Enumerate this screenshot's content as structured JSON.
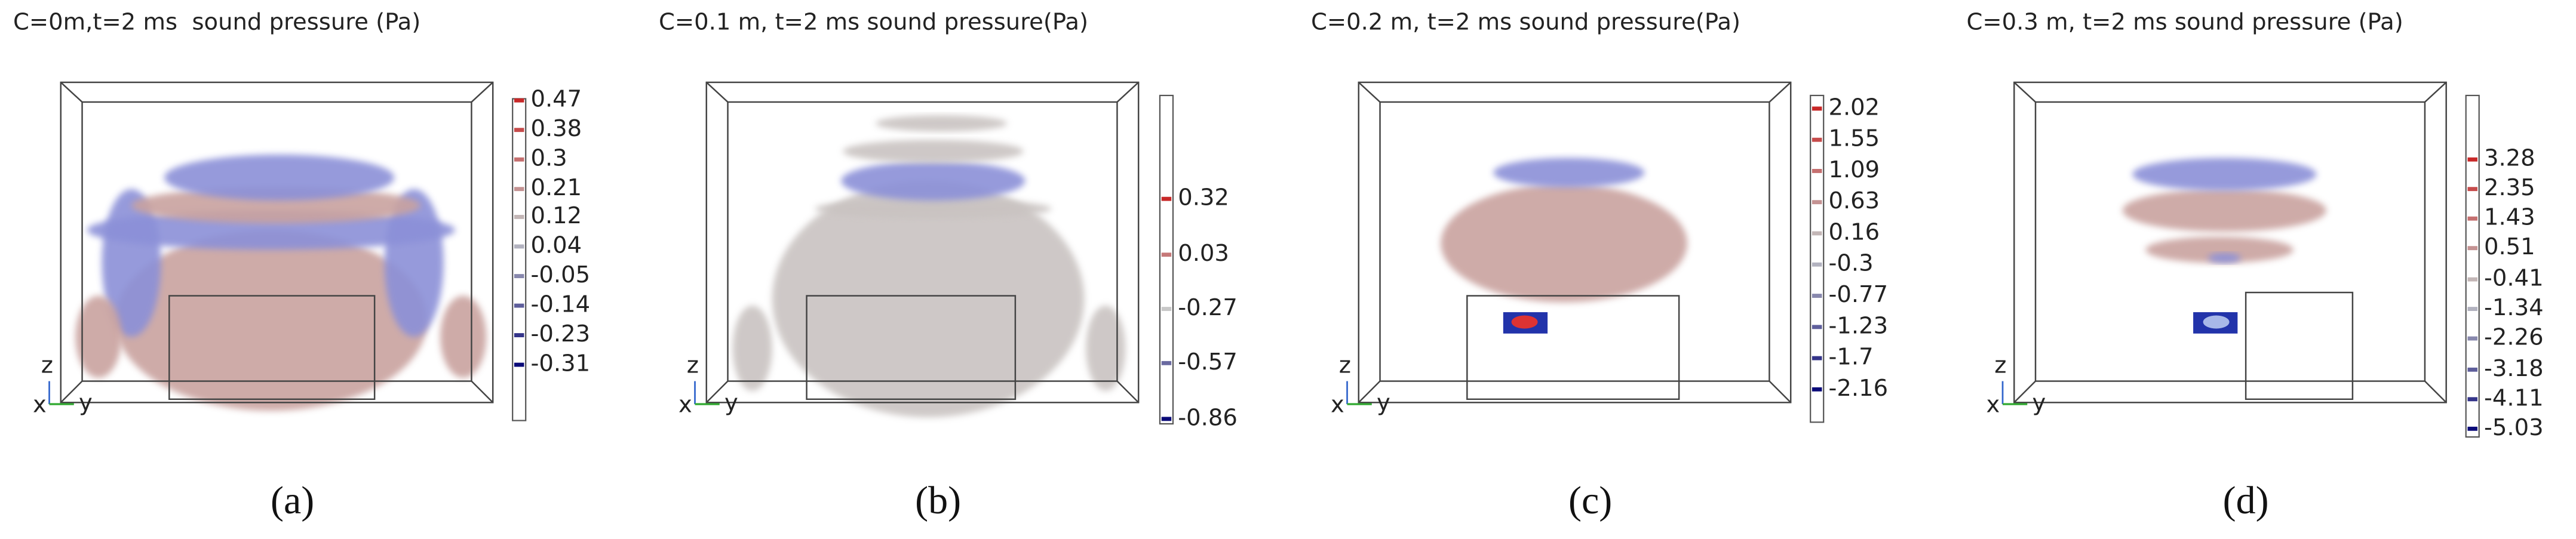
{
  "panels": [
    {
      "title": "C=0m,t=2 ms  sound pressure (Pa)",
      "colorbar_labels": [
        "0.47",
        "0.38",
        "0.3",
        "0.21",
        "0.12",
        "0.04",
        "-0.05",
        "-0.14",
        "-0.23",
        "-0.31"
      ],
      "caption": "(a)"
    },
    {
      "title": "C=0.1 m, t=2 ms sound pressure(Pa)",
      "colorbar_labels": [
        "0.32",
        "0.03",
        "-0.27",
        "-0.57",
        "-0.86"
      ],
      "caption": "(b)"
    },
    {
      "title": "C=0.2 m, t=2 ms sound pressure(Pa)",
      "colorbar_labels": [
        "2.02",
        "1.55",
        "1.09",
        "0.63",
        "0.16",
        "-0.3",
        "-0.77",
        "-1.23",
        "-1.7",
        "-2.16"
      ],
      "caption": "(c)"
    },
    {
      "title": "C=0.3 m, t=2 ms sound pressure (Pa)",
      "colorbar_labels": [
        "3.28",
        "2.35",
        "1.43",
        "0.51",
        "-0.41",
        "-1.34",
        "-2.26",
        "-3.18",
        "-4.11",
        "-5.03"
      ],
      "caption": "(d)"
    }
  ],
  "axis_labels": {
    "z": "z",
    "x": "x",
    "y": "y"
  }
}
